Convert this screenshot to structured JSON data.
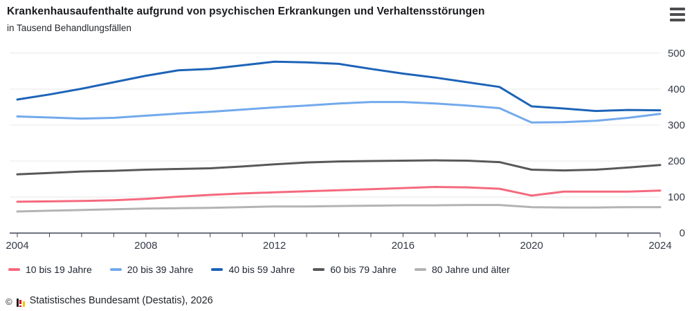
{
  "header": {
    "title": "Krankenhausaufenthalte aufgrund von psychischen Erkrankungen und Verhaltensstörungen",
    "subtitle": "in Tausend Behandlungsfällen",
    "menu_icon": "hamburger-icon"
  },
  "chart_data": {
    "type": "line",
    "title": "Krankenhausaufenthalte aufgrund von psychischen Erkrankungen und Verhaltensstörungen",
    "ylabel": "in Tausend Behandlungsfällen",
    "x": [
      2004,
      2005,
      2006,
      2007,
      2008,
      2009,
      2010,
      2011,
      2012,
      2013,
      2014,
      2015,
      2016,
      2017,
      2018,
      2019,
      2020,
      2021,
      2022,
      2023,
      2024
    ],
    "x_tick_labels": [
      "2004",
      "2008",
      "2012",
      "2016",
      "2020",
      "2024"
    ],
    "y_ticks": [
      0,
      100,
      200,
      300,
      400,
      500
    ],
    "ylim": [
      0,
      500
    ],
    "grid": "horizontal",
    "legend_position": "bottom",
    "series": [
      {
        "name": "10 bis 19 Jahre",
        "color": "#f5697e",
        "values": [
          87,
          88,
          89,
          91,
          95,
          101,
          106,
          110,
          113,
          116,
          119,
          122,
          125,
          128,
          127,
          123,
          104,
          115,
          115,
          115,
          118
        ]
      },
      {
        "name": "20 bis 39 Jahre",
        "color": "#72a9ec",
        "values": [
          324,
          321,
          318,
          320,
          326,
          332,
          337,
          343,
          349,
          354,
          360,
          364,
          364,
          360,
          354,
          347,
          307,
          308,
          312,
          320,
          331
        ]
      },
      {
        "name": "40 bis 59 Jahre",
        "color": "#1d63b8",
        "values": [
          371,
          385,
          401,
          419,
          437,
          452,
          456,
          466,
          476,
          474,
          470,
          456,
          443,
          432,
          419,
          406,
          352,
          346,
          339,
          342,
          341
        ]
      },
      {
        "name": "60 bis 79 Jahre",
        "color": "#58585b",
        "values": [
          163,
          167,
          171,
          173,
          176,
          178,
          180,
          185,
          191,
          196,
          199,
          200,
          201,
          202,
          201,
          197,
          176,
          174,
          176,
          182,
          189
        ]
      },
      {
        "name": "80 Jahre und älter",
        "color": "#b3b3b3",
        "values": [
          60,
          62,
          64,
          66,
          68,
          69,
          70,
          72,
          74,
          74,
          75,
          76,
          77,
          77,
          78,
          78,
          72,
          71,
          71,
          72,
          72
        ]
      }
    ]
  },
  "colors": {
    "grid": "#e8e8e8",
    "axis": "#3c4454",
    "axis_text": "#333a47"
  },
  "footer": {
    "copyright": "©",
    "source": "Statistisches Bundesamt (Destatis), 2026"
  }
}
